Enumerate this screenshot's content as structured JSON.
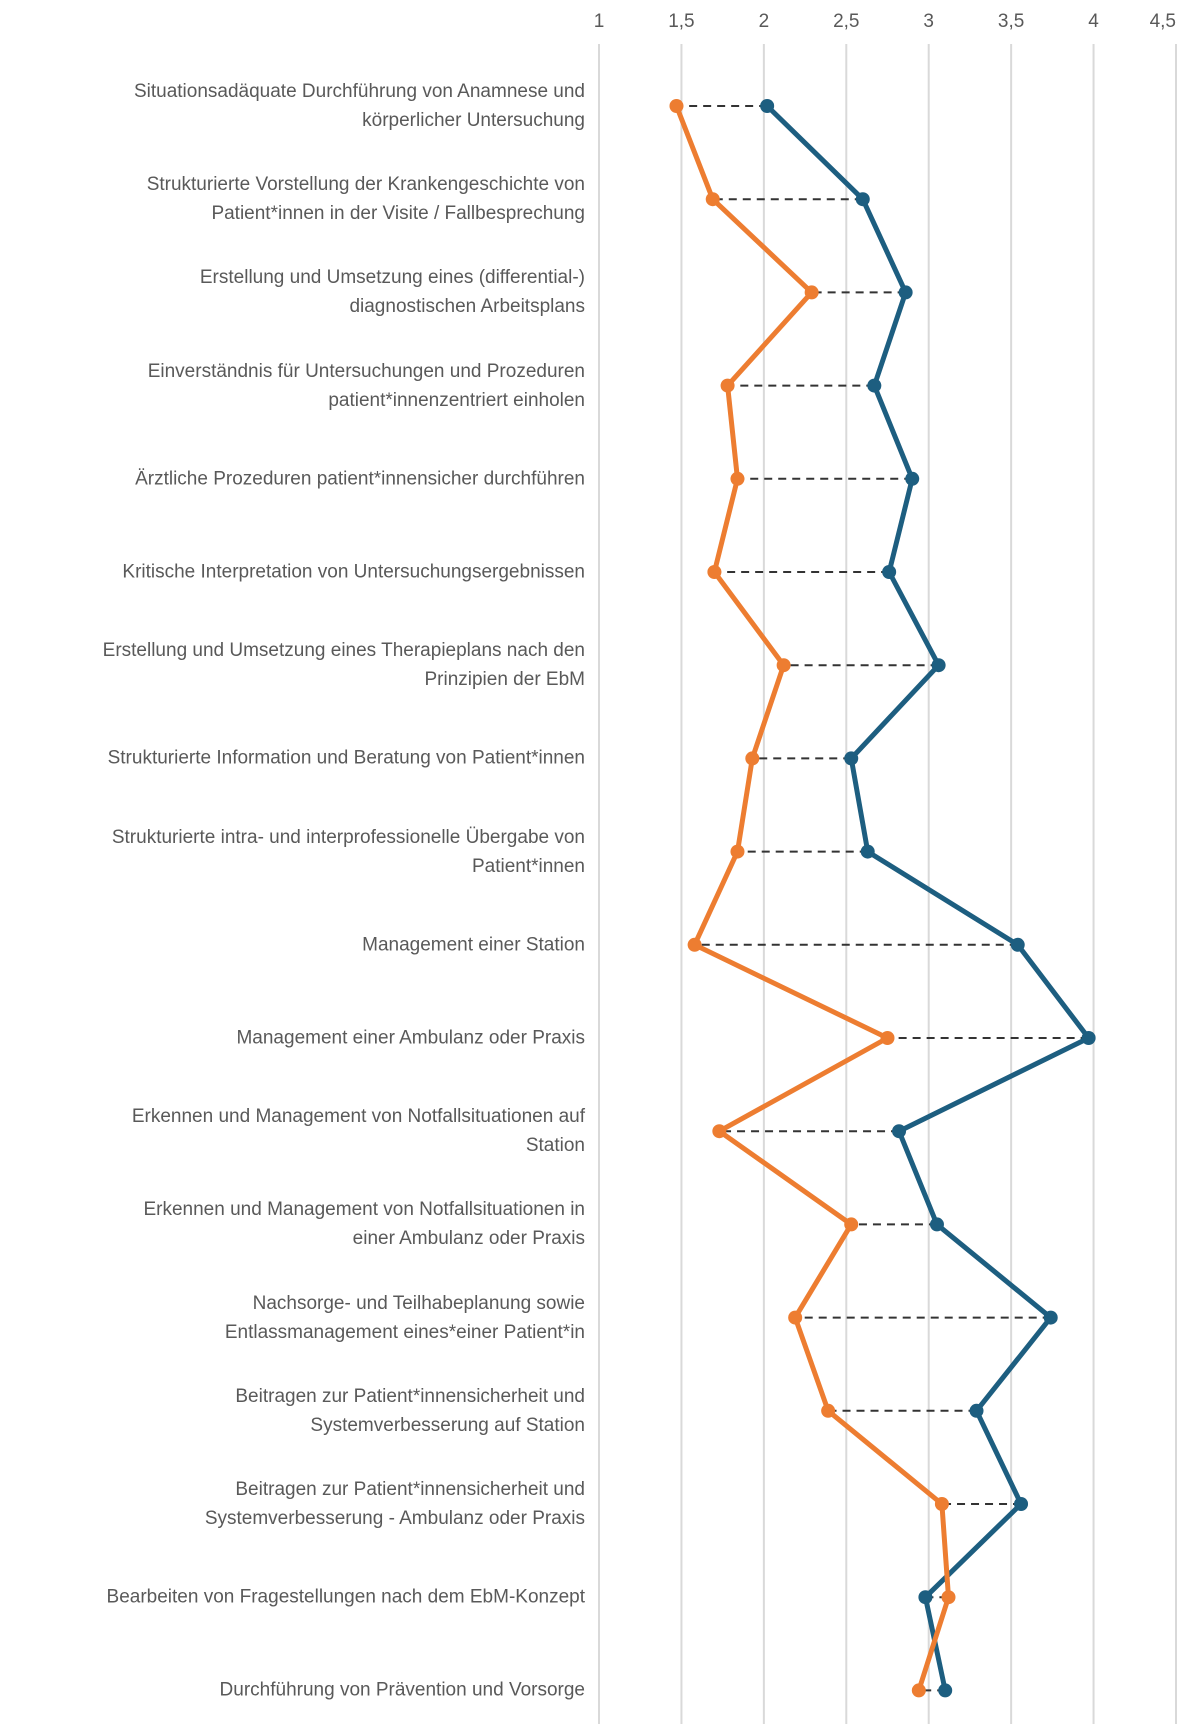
{
  "chart_data": {
    "type": "line",
    "orientation": "horizontal",
    "categories": [
      "Situationsadäquate Durchführung von Anamnese und\nkörperlicher Untersuchung",
      "Strukturierte Vorstellung der Krankengeschichte von\nPatient*innen in der Visite / Fallbesprechung",
      "Erstellung und Umsetzung eines (differential-)\ndiagnostischen Arbeitsplans",
      "Einverständnis für Untersuchungen und Prozeduren\npatient*innenzentriert einholen",
      "Ärztliche Prozeduren patient*innensicher durchführen",
      "Kritische Interpretation von Untersuchungsergebnissen",
      "Erstellung und Umsetzung eines Therapieplans nach den\nPrinzipien der EbM",
      "Strukturierte Information und Beratung von Patient*innen",
      "Strukturierte intra- und interprofessionelle Übergabe von\nPatient*innen",
      "Management einer Station",
      "Management einer Ambulanz oder Praxis",
      "Erkennen und Management von Notfallsituationen auf\nStation",
      "Erkennen und Management von Notfallsituationen in\neiner Ambulanz oder Praxis",
      "Nachsorge- und Teilhabeplanung sowie\nEntlassmanagement eines*einer Patient*in",
      "Beitragen zur Patient*innensicherheit und\nSystemverbesserung auf Station",
      "Beitragen zur Patient*innensicherheit und\nSystemverbesserung - Ambulanz oder Praxis",
      "Bearbeiten von Fragestellungen nach dem EbM-Konzept",
      "Durchführung von Prävention und Vorsorge"
    ],
    "series": [
      {
        "color": "#1d5e80",
        "values": [
          2.02,
          2.6,
          2.86,
          2.67,
          2.9,
          2.76,
          3.06,
          2.53,
          2.63,
          3.54,
          3.97,
          2.82,
          3.05,
          3.74,
          3.29,
          3.56,
          2.98,
          3.1
        ]
      },
      {
        "color": "#ed7d31",
        "values": [
          1.47,
          1.69,
          2.29,
          1.78,
          1.84,
          1.7,
          2.12,
          1.93,
          1.84,
          1.58,
          2.75,
          1.73,
          2.53,
          2.19,
          2.39,
          3.08,
          3.12,
          2.94
        ]
      }
    ],
    "xlim": [
      1,
      4.5
    ],
    "xticks": [
      1,
      {
        "value": 1.5,
        "label": "1,5"
      },
      2,
      {
        "value": 2.5,
        "label": "2,5"
      },
      3,
      {
        "value": 3.5,
        "label": "3,5"
      },
      4,
      {
        "value": 4.5,
        "label": "4,5"
      }
    ],
    "grid": true,
    "connectors": true
  }
}
